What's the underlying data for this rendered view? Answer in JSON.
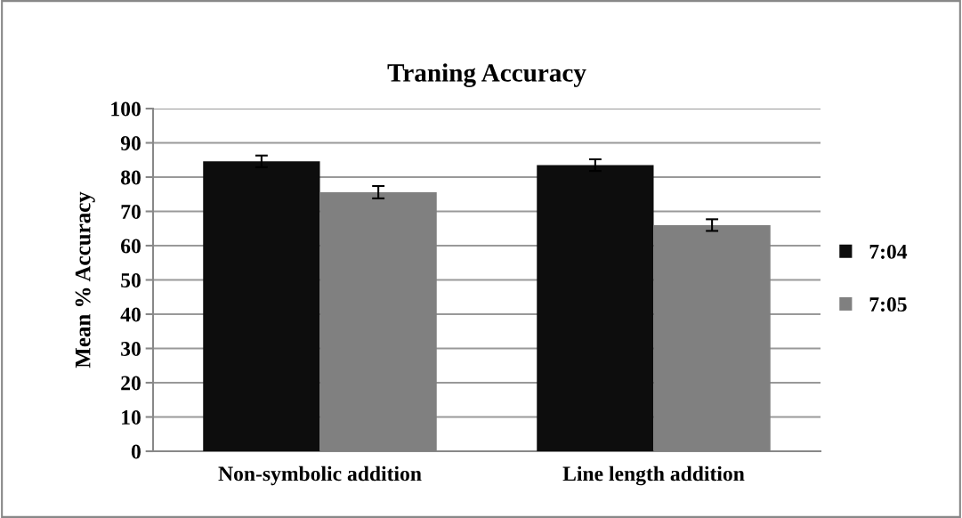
{
  "chart_data": {
    "type": "bar",
    "title": "Traning Accuracy",
    "ylabel": "Mean % Accuracy",
    "categories": [
      "Non-symbolic addition",
      "Line length addition"
    ],
    "series": [
      {
        "name": "7:04",
        "color": "#0d0d0d",
        "values": [
          84.6,
          83.5
        ],
        "errors": [
          1.7,
          1.7
        ]
      },
      {
        "name": "7:05",
        "color": "#808080",
        "values": [
          75.6,
          66.0
        ],
        "errors": [
          1.8,
          1.7
        ]
      }
    ],
    "ylim": [
      0,
      100
    ],
    "yticks": [
      0,
      10,
      20,
      30,
      40,
      50,
      60,
      70,
      80,
      90,
      100
    ],
    "grid": "y",
    "legend": "right"
  }
}
